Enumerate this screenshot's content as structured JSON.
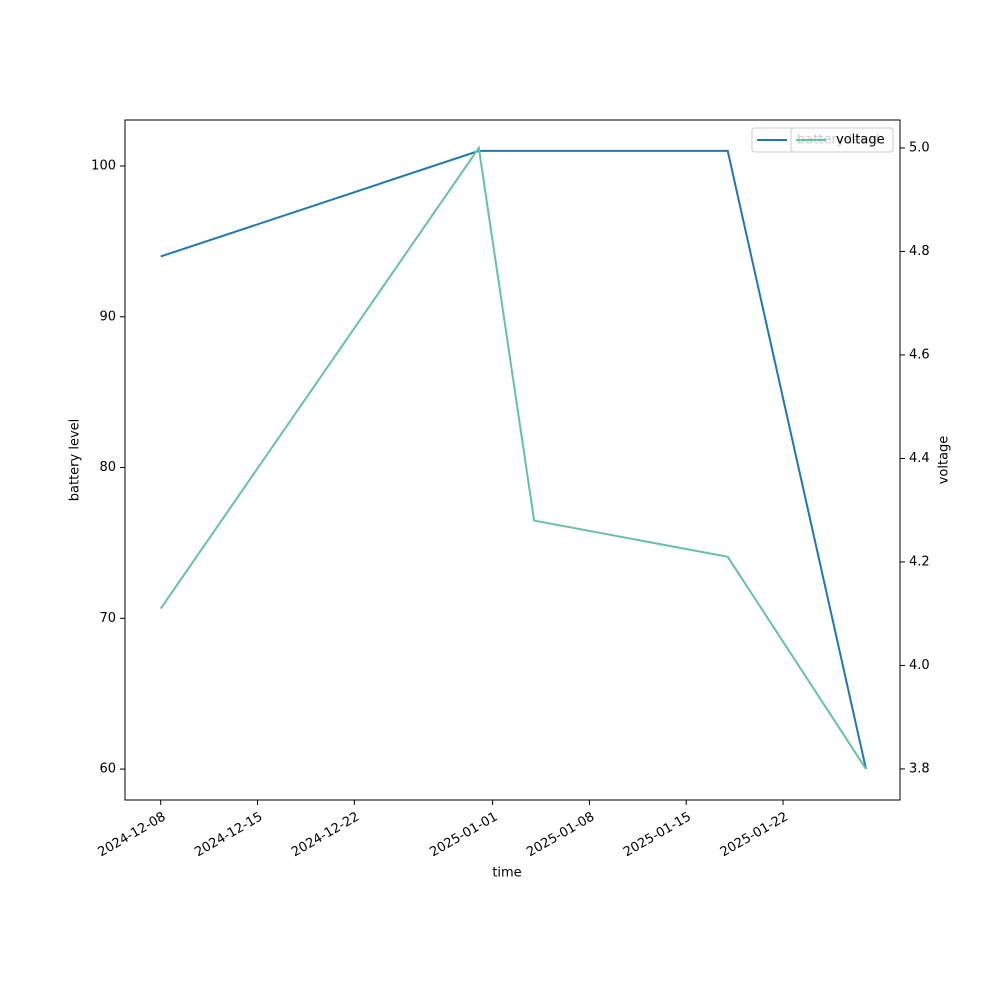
{
  "chart_data": {
    "type": "line",
    "x": [
      "2024-12-08",
      "2024-12-31",
      "2025-01-04",
      "2025-01-18",
      "2025-01-28"
    ],
    "series": [
      {
        "name": "battery level",
        "color": "#1f77b4",
        "values": [
          94,
          101,
          101,
          101,
          60
        ]
      },
      {
        "name": "voltage",
        "color": "#66c2a5",
        "axis": "y2",
        "values": [
          4.11,
          5.0,
          4.28,
          4.21,
          3.8
        ]
      }
    ],
    "xlabel": "time",
    "ylabel": "battery level",
    "y2label": "voltage",
    "xlim": [
      "2024-12-05T10:00:00Z",
      "2025-01-30T11:00:00Z"
    ],
    "xticks": [
      "2024-12-08",
      "2024-12-15",
      "2024-12-22",
      "2025-01-01",
      "2025-01-08",
      "2025-01-15",
      "2025-01-22"
    ],
    "ylim": [
      57.95,
      103.05
    ],
    "yticks": [
      60,
      70,
      80,
      90,
      100
    ],
    "y2lim": [
      3.74,
      5.054
    ],
    "y2ticks": [
      3.8,
      {
        "value": 4,
        "label": "4.0"
      },
      4.2,
      4.4,
      4.6,
      4.8,
      {
        "value": 5,
        "label": "5.0"
      }
    ],
    "legend": "upper right"
  }
}
